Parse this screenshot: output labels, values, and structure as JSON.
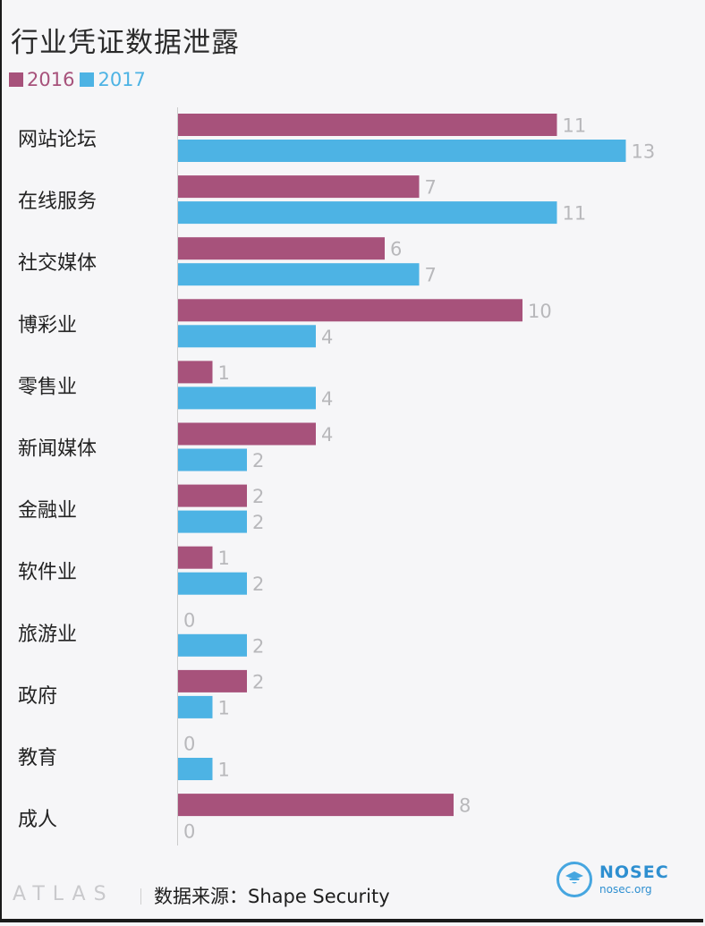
{
  "title": "行业凭证数据泄露",
  "colors": {
    "2016": "#a7527b",
    "2017": "#4db3e4",
    "value_label": "#b8b8bb",
    "axis": "#cccccc"
  },
  "chart_data": {
    "type": "bar",
    "orientation": "horizontal",
    "title": "行业凭证数据泄露",
    "categories": [
      "网站论坛",
      "在线服务",
      "社交媒体",
      "博彩业",
      "零售业",
      "新闻媒体",
      "金融业",
      "软件业",
      "旅游业",
      "政府",
      "教育",
      "成人"
    ],
    "series": [
      {
        "name": "2016",
        "values": [
          11,
          7,
          6,
          10,
          1,
          4,
          2,
          1,
          0,
          2,
          0,
          8
        ]
      },
      {
        "name": "2017",
        "values": [
          13,
          11,
          7,
          4,
          4,
          2,
          2,
          2,
          2,
          1,
          1,
          0
        ]
      }
    ],
    "xlim": [
      0,
      13
    ],
    "legend": "top-left",
    "grid": false,
    "data_labels": true
  },
  "footer": {
    "brand": "ATLAS",
    "source": "数据来源：Shape Security",
    "logo_name": "NOSEC",
    "logo_url": "nosec.org"
  }
}
